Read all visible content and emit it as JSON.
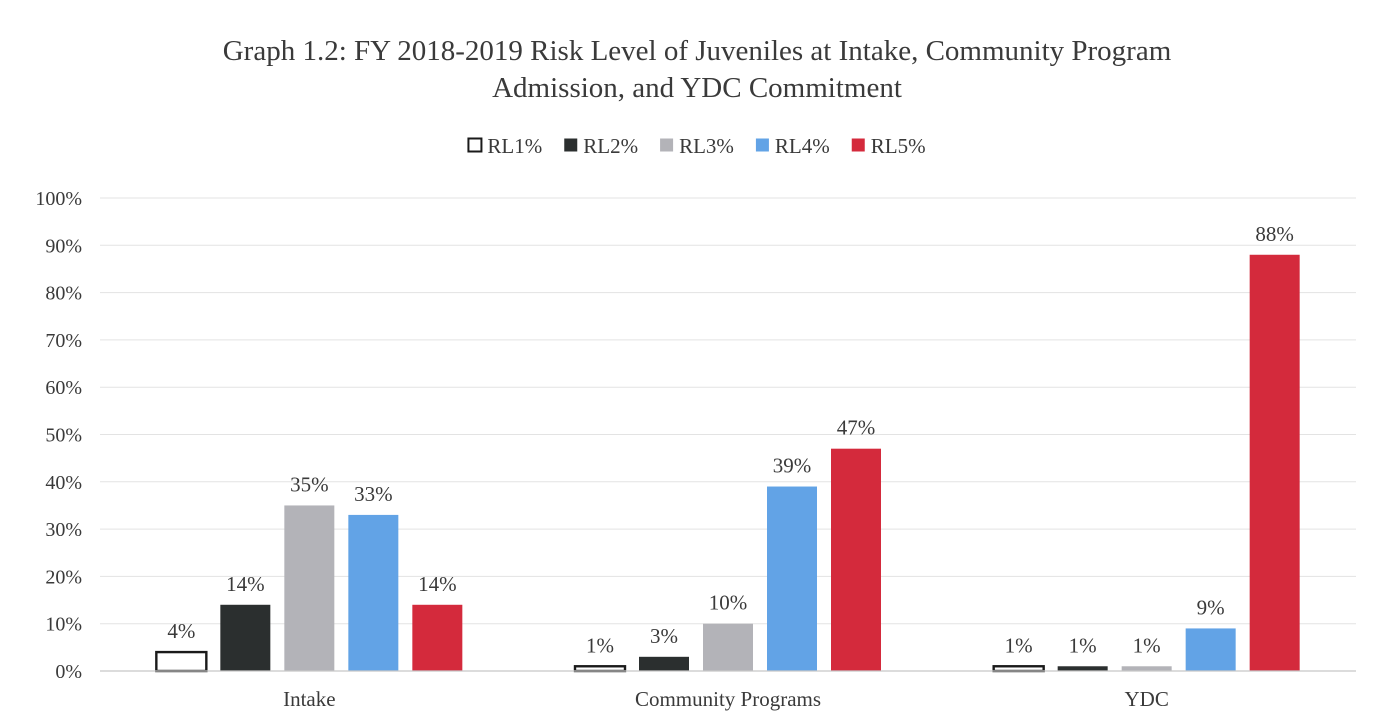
{
  "chart_data": {
    "type": "bar",
    "title_lines": [
      "Graph 1.2: FY 2018-2019 Risk Level of Juveniles at Intake, Community Program",
      "Admission, and YDC Commitment"
    ],
    "categories": [
      "Intake",
      "Community Programs",
      "YDC"
    ],
    "series": [
      {
        "name": "RL1%",
        "values": [
          4,
          1,
          1
        ],
        "color": "#ffffff",
        "stroke": "#1a1a1a"
      },
      {
        "name": "RL2%",
        "values": [
          14,
          3,
          1
        ],
        "color": "#2b2f2f",
        "stroke": "#2b2f2f"
      },
      {
        "name": "RL3%",
        "values": [
          35,
          10,
          1
        ],
        "color": "#b3b3b8",
        "stroke": "#b3b3b8"
      },
      {
        "name": "RL4%",
        "values": [
          33,
          39,
          9
        ],
        "color": "#62a3e6",
        "stroke": "#62a3e6"
      },
      {
        "name": "RL5%",
        "values": [
          14,
          47,
          88
        ],
        "color": "#d42a3c",
        "stroke": "#d42a3c"
      }
    ],
    "value_suffix": "%",
    "ylim": [
      0,
      100
    ],
    "yticks": [
      "0%",
      "10%",
      "20%",
      "30%",
      "40%",
      "50%",
      "60%",
      "70%",
      "80%",
      "90%",
      "100%"
    ],
    "legend_position": "top-center",
    "grid": true,
    "xlabel": "",
    "ylabel": ""
  }
}
